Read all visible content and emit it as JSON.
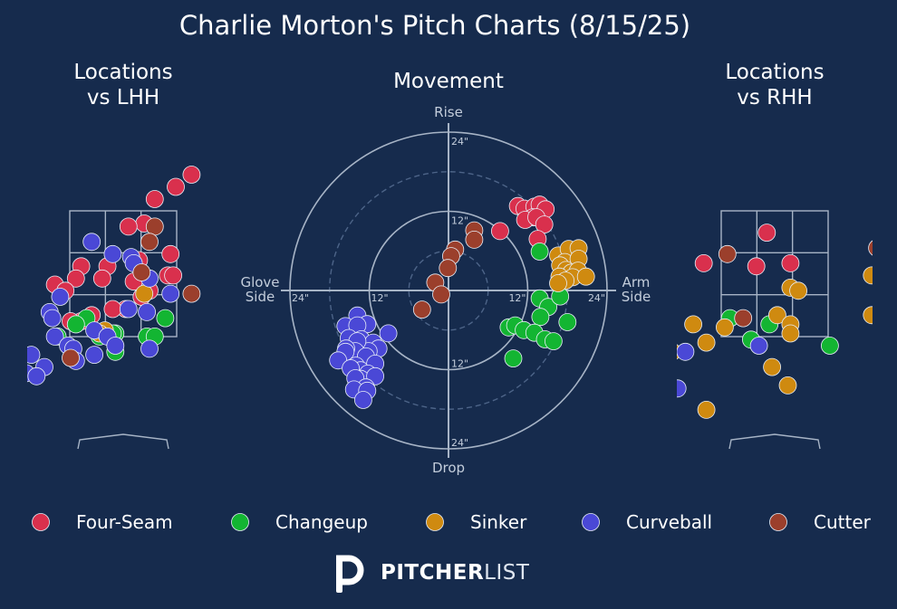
{
  "page": {
    "title": "Charlie Morton's Pitch Charts (8/15/25)",
    "brand_bold": "PITCHER",
    "brand_light": "LIST"
  },
  "colors": {
    "background": "#162b4d",
    "grid": "#a7b4c6",
    "Four-Seam": "#d9304d",
    "Changeup": "#13b532",
    "Sinker": "#cf8a10",
    "Curveball": "#4a48d6",
    "Cutter": "#9b3f2c"
  },
  "chart_data": [
    {
      "type": "scatter",
      "title": "Locations\nvs LHH",
      "units": "feet (plate_x, plate_z)",
      "xlim": [
        -2.05,
        2.05
      ],
      "ylim": [
        0,
        4.6
      ],
      "series": [
        {
          "name": "Four-Seam",
          "points": [
            [
              1.3,
              4.4
            ],
            [
              1.0,
              4.2
            ],
            [
              0.6,
              4.0
            ],
            [
              0.4,
              3.6
            ],
            [
              0.1,
              3.55
            ],
            [
              0.9,
              3.1
            ],
            [
              0.3,
              3.0
            ],
            [
              -0.3,
              2.9
            ],
            [
              -0.8,
              2.9
            ],
            [
              -0.4,
              2.7
            ],
            [
              -0.9,
              2.7
            ],
            [
              -1.3,
              2.6
            ],
            [
              -1.1,
              2.5
            ],
            [
              0.2,
              2.65
            ],
            [
              0.85,
              2.75
            ],
            [
              0.95,
              2.75
            ],
            [
              0.5,
              2.5
            ],
            [
              0.35,
              2.4
            ],
            [
              -0.6,
              2.1
            ],
            [
              -0.8,
              2.0
            ],
            [
              0.05,
              2.2
            ],
            [
              -0.2,
              2.2
            ],
            [
              -1.0,
              2.0
            ],
            [
              -0.9,
              1.95
            ]
          ]
        },
        {
          "name": "Changeup",
          "points": [
            [
              -0.7,
              2.05
            ],
            [
              -0.9,
              1.95
            ],
            [
              0.8,
              2.05
            ],
            [
              -0.15,
              1.8
            ],
            [
              -0.45,
              1.75
            ],
            [
              -0.2,
              1.8
            ],
            [
              0.45,
              1.75
            ],
            [
              0.6,
              1.75
            ],
            [
              -1.25,
              1.75
            ],
            [
              -0.15,
              1.5
            ]
          ]
        },
        {
          "name": "Sinker",
          "points": [
            [
              0.4,
              2.45
            ],
            [
              -0.35,
              1.85
            ],
            [
              -0.45,
              1.8
            ]
          ]
        },
        {
          "name": "Curveball",
          "points": [
            [
              -0.6,
              3.3
            ],
            [
              -0.2,
              3.1
            ],
            [
              0.15,
              3.05
            ],
            [
              0.2,
              2.95
            ],
            [
              0.5,
              2.7
            ],
            [
              0.9,
              2.45
            ],
            [
              -1.2,
              2.4
            ],
            [
              -1.4,
              2.15
            ],
            [
              -1.35,
              2.05
            ],
            [
              0.1,
              2.2
            ],
            [
              0.45,
              2.15
            ],
            [
              -0.55,
              1.85
            ],
            [
              -0.3,
              1.75
            ],
            [
              -1.3,
              1.75
            ],
            [
              -1.05,
              1.6
            ],
            [
              -0.95,
              1.55
            ],
            [
              -0.15,
              1.6
            ],
            [
              0.5,
              1.55
            ],
            [
              -0.55,
              1.45
            ],
            [
              -1.75,
              1.45
            ],
            [
              -0.9,
              1.35
            ],
            [
              -1.5,
              1.25
            ],
            [
              -1.85,
              1.15
            ],
            [
              -1.65,
              1.1
            ],
            [
              -2.0,
              0.85
            ]
          ]
        },
        {
          "name": "Cutter",
          "points": [
            [
              0.6,
              3.55
            ],
            [
              0.5,
              3.3
            ],
            [
              0.35,
              2.8
            ],
            [
              1.3,
              2.45
            ],
            [
              -1.0,
              1.4
            ]
          ]
        }
      ]
    },
    {
      "type": "scatter",
      "subtype": "polar-movement",
      "title": "Movement",
      "units": "inches (horizontal break, induced vertical break)",
      "ring_labels": [
        "12\"",
        "24\""
      ],
      "axis_labels": {
        "top": "Rise",
        "bottom": "Drop",
        "left": "Glove\nSide",
        "right": "Arm\nSide"
      },
      "rlim": 24,
      "series": [
        {
          "name": "Four-Seam",
          "points": [
            [
              10.5,
              12.8
            ],
            [
              11.5,
              12.4
            ],
            [
              13,
              12.7
            ],
            [
              13.8,
              13
            ],
            [
              14.7,
              12.3
            ],
            [
              12.8,
              11.1
            ],
            [
              11.6,
              10.7
            ],
            [
              13.3,
              11.1
            ],
            [
              14.5,
              10
            ],
            [
              13.5,
              7.8
            ],
            [
              7.8,
              9
            ]
          ]
        },
        {
          "name": "Changeup",
          "points": [
            [
              13.8,
              5.9
            ],
            [
              13.8,
              -1.2
            ],
            [
              15.1,
              -2.5
            ],
            [
              16.9,
              -0.9
            ],
            [
              13.9,
              -4
            ],
            [
              18,
              -4.8
            ],
            [
              9.1,
              -5.6
            ],
            [
              10.1,
              -5.3
            ],
            [
              11.4,
              -6
            ],
            [
              13,
              -6.4
            ],
            [
              14.6,
              -7.4
            ],
            [
              15.9,
              -7.7
            ],
            [
              9.8,
              -10.3
            ]
          ]
        },
        {
          "name": "Sinker",
          "points": [
            [
              16.6,
              5.3
            ],
            [
              18.2,
              6.3
            ],
            [
              19.7,
              6.4
            ],
            [
              17.6,
              4.3
            ],
            [
              19.7,
              4.8
            ],
            [
              16.9,
              3.8
            ],
            [
              17.8,
              3.1
            ],
            [
              18.6,
              2.7
            ],
            [
              19.6,
              3
            ],
            [
              16.8,
              2.1
            ],
            [
              18.8,
              2
            ],
            [
              20.8,
              2.1
            ],
            [
              17.7,
              1.5
            ],
            [
              16.6,
              1.1
            ]
          ]
        },
        {
          "name": "Curveball",
          "points": [
            [
              -13.8,
              -3.8
            ],
            [
              -12.3,
              -5.1
            ],
            [
              -15.6,
              -5.4
            ],
            [
              -13.8,
              -5.3
            ],
            [
              -9.1,
              -6.5
            ],
            [
              -15.1,
              -7.2
            ],
            [
              -13.2,
              -7.4
            ],
            [
              -11.4,
              -7.9
            ],
            [
              -10.6,
              -8.8
            ],
            [
              -12.1,
              -9.2
            ],
            [
              -13.8,
              -7.7
            ],
            [
              -14.1,
              -9.2
            ],
            [
              -15.5,
              -8.8
            ],
            [
              -15.6,
              -9.3
            ],
            [
              -16.7,
              -10.6
            ],
            [
              -12.5,
              -10
            ],
            [
              -14,
              -11.4
            ],
            [
              -11.1,
              -11.1
            ],
            [
              -13.3,
              -12.1
            ],
            [
              -14.8,
              -11.8
            ],
            [
              -12.2,
              -12.6
            ],
            [
              -13.3,
              -13.4
            ],
            [
              -11.1,
              -13
            ],
            [
              -14.1,
              -13.3
            ],
            [
              -12.5,
              -14.7
            ],
            [
              -14.3,
              -15
            ],
            [
              -12.3,
              -15.2
            ],
            [
              -12.9,
              -16.6
            ]
          ]
        },
        {
          "name": "Cutter",
          "points": [
            [
              3.9,
              9.1
            ],
            [
              3.9,
              7.7
            ],
            [
              1,
              6.2
            ],
            [
              0.4,
              5.2
            ],
            [
              -0.1,
              3.4
            ],
            [
              -2,
              1.2
            ],
            [
              -1.1,
              -0.6
            ],
            [
              -4,
              -2.9
            ]
          ]
        }
      ]
    },
    {
      "type": "scatter",
      "title": "Locations\nvs RHH",
      "units": "feet (plate_x, plate_z)",
      "xlim": [
        -2.05,
        2.05
      ],
      "ylim": [
        0,
        4.6
      ],
      "series": [
        {
          "name": "Four-Seam",
          "points": [
            [
              -0.15,
              3.45
            ],
            [
              -1.35,
              2.95
            ],
            [
              -0.35,
              2.9
            ],
            [
              0.3,
              2.95
            ]
          ]
        },
        {
          "name": "Changeup",
          "points": [
            [
              -0.85,
              2.05
            ],
            [
              -0.1,
              1.95
            ],
            [
              -0.45,
              1.7
            ],
            [
              1.05,
              1.6
            ]
          ]
        },
        {
          "name": "Sinker",
          "points": [
            [
              1.85,
              2.75
            ],
            [
              0.3,
              2.55
            ],
            [
              0.45,
              2.5
            ],
            [
              -1.55,
              1.95
            ],
            [
              -0.95,
              1.9
            ],
            [
              0.05,
              2.1
            ],
            [
              0.3,
              1.95
            ],
            [
              1.85,
              2.1
            ],
            [
              0.3,
              1.8
            ],
            [
              -1.3,
              1.65
            ],
            [
              -1.95,
              1.5
            ],
            [
              -0.05,
              1.25
            ],
            [
              0.25,
              0.95
            ],
            [
              -1.3,
              0.55
            ]
          ]
        },
        {
          "name": "Curveball",
          "points": [
            [
              -0.3,
              1.6
            ],
            [
              -1.7,
              1.5
            ],
            [
              -1.85,
              0.9
            ],
            [
              -2.05,
              0.7
            ]
          ]
        },
        {
          "name": "Cutter",
          "points": [
            [
              -0.9,
              3.1
            ],
            [
              1.95,
              3.2
            ],
            [
              -0.6,
              2.05
            ]
          ]
        }
      ]
    }
  ],
  "legend": {
    "placement": "bottom",
    "items": [
      "Four-Seam",
      "Changeup",
      "Sinker",
      "Curveball",
      "Cutter"
    ]
  }
}
